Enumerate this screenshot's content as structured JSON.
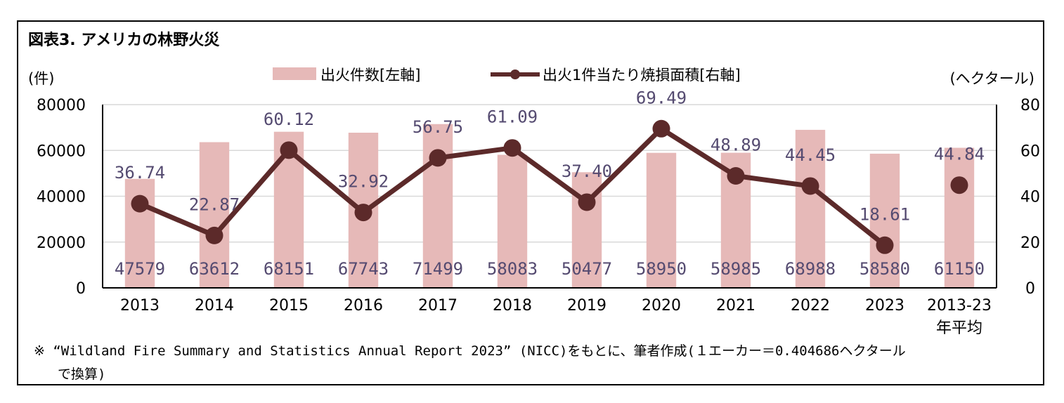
{
  "title": "図表3. アメリカの林野火災",
  "left_unit": "(件)",
  "right_unit": "(ヘクタール)",
  "note_line1": "※ “Wildland Fire Summary and Statistics Annual Report 2023” (NICC)をもとに、筆者作成(１エーカー＝0.404686ヘクタール",
  "note_line2": "で換算)",
  "colors": {
    "bar": "#e6b9b8",
    "line": "#5c2a2a",
    "label": "#544a70",
    "grid": "#d9d9d9"
  },
  "chart_data": {
    "type": "bar+line",
    "categories": [
      "2013",
      "2014",
      "2015",
      "2016",
      "2017",
      "2018",
      "2019",
      "2020",
      "2021",
      "2022",
      "2023",
      "2013-23"
    ],
    "category_line2": [
      "",
      "",
      "",
      "",
      "",
      "",
      "",
      "",
      "",
      "",
      "",
      "年平均"
    ],
    "series": [
      {
        "name": "出火件数[左軸]",
        "type": "bar",
        "axis": "left",
        "values": [
          47579,
          63612,
          68151,
          67743,
          71499,
          58083,
          50477,
          58950,
          58985,
          68988,
          58580,
          61150
        ],
        "labels": [
          "47579",
          "63612",
          "68151",
          "67743",
          "71499",
          "58083",
          "50477",
          "58950",
          "58985",
          "68988",
          "58580",
          "61150"
        ]
      },
      {
        "name": "出火1件当たり焼損面積[右軸]",
        "type": "line",
        "axis": "right",
        "values": [
          36.74,
          22.87,
          60.12,
          32.92,
          56.75,
          61.09,
          37.4,
          69.49,
          48.89,
          44.45,
          18.61,
          44.84
        ],
        "labels": [
          "36.74",
          "22.87",
          "60.12",
          "32.92",
          "56.75",
          "61.09",
          "37.40",
          "69.49",
          "48.89",
          "44.45",
          "18.61",
          "44.84"
        ],
        "connected_points": 11
      }
    ],
    "left_axis": {
      "min": 0,
      "max": 80000,
      "ticks": [
        "0",
        "20000",
        "40000",
        "60000",
        "80000"
      ]
    },
    "right_axis": {
      "min": 0,
      "max": 80,
      "ticks": [
        "0",
        "20",
        "40",
        "60",
        "80"
      ]
    },
    "grid": true,
    "legend_position": "top-center"
  }
}
